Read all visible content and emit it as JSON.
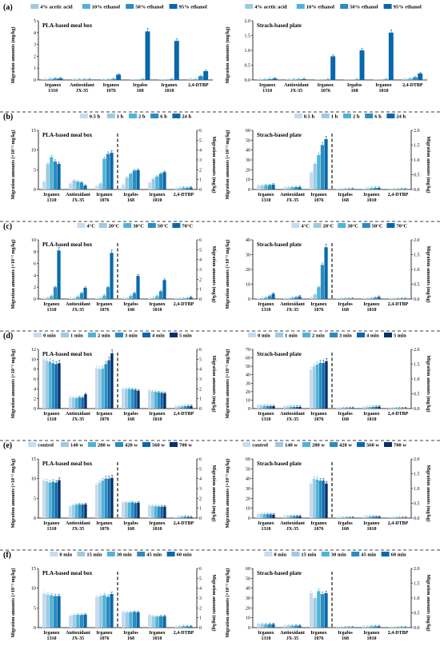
{
  "palette": [
    "#c6dbef",
    "#9ecae1",
    "#4fb3d9",
    "#2b8cbe",
    "#0868ac",
    "#08306b"
  ],
  "chart_data": [
    {
      "panel": "(a)",
      "title": "PLA-based meal box",
      "type": "bar",
      "ylabel": "Migration amounts (mg/kg)",
      "ylim": [
        0,
        5
      ],
      "yticks": [
        "0",
        "1",
        "2",
        "3",
        "4",
        "5"
      ],
      "y2label": "",
      "y2ticks": [],
      "split_after": null,
      "categories": [
        "Irganox 1310",
        "Antioxidant JX-35",
        "Irganox 1076",
        "Irgafos 168",
        "Irganox 1010",
        "2,4-DTBP"
      ],
      "series": [
        {
          "name": "4% acetic acid",
          "values": [
            0.06,
            0.01,
            0.01,
            0.0,
            0.0,
            0.08
          ]
        },
        {
          "name": "10% ethanol",
          "values": [
            0.08,
            0.02,
            0.02,
            0.0,
            0.0,
            0.06
          ]
        },
        {
          "name": "50% ethanol",
          "values": [
            0.12,
            0.03,
            0.08,
            0.05,
            0.06,
            0.32
          ]
        },
        {
          "name": "95% ethanol",
          "values": [
            0.14,
            0.04,
            0.45,
            4.1,
            3.3,
            0.75
          ]
        }
      ]
    },
    {
      "panel": "",
      "title": "Strach-based plate",
      "type": "bar",
      "ylabel": "Migration amounts (mg/kg)",
      "ylim": [
        0,
        2.0
      ],
      "yticks": [
        "0.0",
        "0.5",
        "1.0",
        "1.5",
        "2.0"
      ],
      "y2label": "",
      "y2ticks": [],
      "split_after": null,
      "categories": [
        "Irganox 1310",
        "Antioxidant JX-35",
        "Irganox 1076",
        "Irgafos 168",
        "Irganox 1010",
        "2,4-DTBP"
      ],
      "series": [
        {
          "name": "4% acetic acid",
          "values": [
            0.01,
            0.01,
            0.0,
            0.0,
            0.0,
            0.03
          ]
        },
        {
          "name": "10% ethanol",
          "values": [
            0.02,
            0.01,
            0.0,
            0.0,
            0.0,
            0.04
          ]
        },
        {
          "name": "50% ethanol",
          "values": [
            0.03,
            0.02,
            0.01,
            0.01,
            0.02,
            0.09
          ]
        },
        {
          "name": "95% ethanol",
          "values": [
            0.05,
            0.03,
            0.8,
            1.0,
            1.6,
            0.22
          ]
        }
      ]
    },
    {
      "panel": "(b)",
      "title": "PLA-based meal box",
      "type": "bar",
      "ylabel": "Migration amounts (×10⁻² mg/kg)",
      "ylim": [
        0,
        15
      ],
      "yticks": [
        "0",
        "5",
        "10",
        "15"
      ],
      "y2label": "Migration amounts (mg/kg)",
      "y2ticks": [
        "0",
        "1",
        "2",
        "3",
        "4",
        "5",
        "6"
      ],
      "split_after": 2,
      "categories": [
        "Irganox 1310",
        "Antioxidant JX-35",
        "Irganox 1076",
        "Irgafos 168",
        "Irganox 1010",
        "2,4-DTBP"
      ],
      "series": [
        {
          "name": "0.5 h",
          "values": [
            2.0,
            1.5,
            0.8,
            1.1,
            1.7,
            0.3
          ]
        },
        {
          "name": "1 h",
          "values": [
            6.5,
            2.3,
            1.5,
            3.0,
            2.7,
            0.4
          ]
        },
        {
          "name": "2 h",
          "values": [
            8.2,
            2.0,
            7.8,
            4.0,
            3.3,
            0.5
          ]
        },
        {
          "name": "6 h",
          "values": [
            7.1,
            1.8,
            9.0,
            4.8,
            4.0,
            0.4
          ]
        },
        {
          "name": "24 h",
          "values": [
            6.5,
            1.0,
            9.3,
            4.9,
            4.4,
            0.5
          ]
        }
      ]
    },
    {
      "panel": "",
      "title": "Strach-based plate",
      "type": "bar",
      "ylabel": "Migration amounts (×10⁻² mg/kg)",
      "ylim": [
        0,
        60
      ],
      "yticks": [
        "0",
        "10",
        "20",
        "30",
        "40",
        "50",
        "60"
      ],
      "y2label": "Migration amounts (mg/kg)",
      "y2ticks": [
        "0.0",
        "0.5",
        "1.0",
        "1.5",
        "2.0"
      ],
      "split_after": 2,
      "categories": [
        "Irganox 1310",
        "Antioxidant JX-35",
        "Irganox 1076",
        "Irgafos 168",
        "Irganox 1010",
        "2,4-DTBP"
      ],
      "series": [
        {
          "name": "0.5 h",
          "values": [
            4.0,
            2.0,
            17.0,
            0.15,
            0.8,
            0.15
          ]
        },
        {
          "name": "1 h",
          "values": [
            4.0,
            2.2,
            26.0,
            0.25,
            1.2,
            0.2
          ]
        },
        {
          "name": "2 h",
          "values": [
            4.5,
            2.3,
            35.0,
            0.4,
            1.5,
            0.22
          ]
        },
        {
          "name": "6 h",
          "values": [
            4.5,
            2.4,
            45.0,
            0.5,
            1.65,
            0.18
          ]
        },
        {
          "name": "24 h",
          "values": [
            5.0,
            2.5,
            51.0,
            0.65,
            1.68,
            0.12
          ]
        }
      ]
    },
    {
      "panel": "(c)",
      "title": "PLA-based meal box",
      "type": "bar",
      "ylabel": "Migration amounts (×10⁻² mg/kg)",
      "ylim": [
        0,
        10
      ],
      "yticks": [
        "0",
        "2",
        "4",
        "6",
        "8",
        "10"
      ],
      "y2label": "Migration amounts (mg/kg)",
      "y2ticks": [
        "0",
        "1",
        "2",
        "3",
        "4",
        "5",
        "6"
      ],
      "split_after": 2,
      "categories": [
        "Irganox 1310",
        "Antioxidant JX-35",
        "Irganox 1076",
        "Irgafos 168",
        "Irganox 1010",
        "2,4-DTBP"
      ],
      "series": [
        {
          "name": "4°C",
          "values": [
            0.1,
            0.1,
            0.1,
            0.05,
            0.05,
            0.02
          ]
        },
        {
          "name": "20°C",
          "values": [
            0.2,
            0.1,
            0.2,
            0.1,
            0.2,
            0.02
          ]
        },
        {
          "name": "30°C",
          "values": [
            0.5,
            0.4,
            0.6,
            0.5,
            0.5,
            0.05
          ]
        },
        {
          "name": "50°C",
          "values": [
            2.0,
            1.0,
            2.0,
            1.0,
            1.3,
            0.1
          ]
        },
        {
          "name": "70°C",
          "values": [
            8.2,
            1.9,
            7.8,
            3.9,
            3.2,
            0.3
          ]
        }
      ]
    },
    {
      "panel": "",
      "title": "Strach-based plate",
      "type": "bar",
      "ylabel": "Migration amounts (×10⁻² mg/kg)",
      "ylim": [
        0,
        40
      ],
      "yticks": [
        "0",
        "10",
        "20",
        "30",
        "40"
      ],
      "y2label": "Migration amounts (mg/kg)",
      "y2ticks": [
        "0.0",
        "0.5",
        "1.0",
        "1.5",
        "2.0"
      ],
      "split_after": 2,
      "categories": [
        "Irganox 1310",
        "Antioxidant JX-35",
        "Irganox 1076",
        "Irgafos 168",
        "Irganox 1010",
        "2,4-DTBP"
      ],
      "series": [
        {
          "name": "4°C",
          "values": [
            0.3,
            0.2,
            1.0,
            0.02,
            0.05,
            0.01
          ]
        },
        {
          "name": "20°C",
          "values": [
            0.6,
            0.4,
            3.0,
            0.03,
            0.15,
            0.02
          ]
        },
        {
          "name": "30°C",
          "values": [
            1.0,
            0.8,
            8.0,
            0.05,
            0.45,
            0.04
          ]
        },
        {
          "name": "50°C",
          "values": [
            2.0,
            1.2,
            23.0,
            0.1,
            0.9,
            0.08
          ]
        },
        {
          "name": "70°C",
          "values": [
            3.5,
            1.8,
            35.0,
            0.3,
            1.5,
            0.14
          ]
        }
      ]
    },
    {
      "panel": "(d)",
      "title": "PLA-based meal box",
      "type": "bar",
      "ylabel": "Migration amounts (×10⁻² mg/kg)",
      "ylim": [
        0,
        12
      ],
      "yticks": [
        "0",
        "2",
        "4",
        "6",
        "8",
        "10",
        "12"
      ],
      "y2label": "Migration amounts (mg/kg)",
      "y2ticks": [
        "0",
        "1",
        "2",
        "3",
        "4",
        "5",
        "6"
      ],
      "split_after": 2,
      "categories": [
        "Irganox 1310",
        "Antioxidant JX-35",
        "Irganox 1076",
        "Irgafos 168",
        "Irganox 1010",
        "2,4-DTBP"
      ],
      "series": [
        {
          "name": "0 min",
          "values": [
            10.0,
            2.3,
            8.2,
            4.0,
            3.7,
            0.5
          ]
        },
        {
          "name": "1 min",
          "values": [
            9.7,
            2.2,
            8.0,
            4.0,
            3.5,
            0.45
          ]
        },
        {
          "name": "2 min",
          "values": [
            9.5,
            2.1,
            8.1,
            4.0,
            3.4,
            0.4
          ]
        },
        {
          "name": "3 min",
          "values": [
            9.2,
            2.3,
            9.0,
            3.9,
            3.3,
            0.45
          ]
        },
        {
          "name": "4 min",
          "values": [
            9.0,
            2.2,
            9.8,
            3.8,
            3.2,
            0.5
          ]
        },
        {
          "name": "5 min",
          "values": [
            9.2,
            2.9,
            11.2,
            3.6,
            3.1,
            0.5
          ]
        }
      ]
    },
    {
      "panel": "",
      "title": "Strach-based plate",
      "type": "bar",
      "ylabel": "Migration amounts (×10⁻² mg/kg)",
      "ylim": [
        0,
        70
      ],
      "yticks": [
        "0",
        "10",
        "20",
        "30",
        "40",
        "50",
        "60",
        "70"
      ],
      "y2label": "Migration amounts (mg/kg)",
      "y2ticks": [
        "0.0",
        "0.5",
        "1.0",
        "1.5",
        "2.0"
      ],
      "split_after": 2,
      "categories": [
        "Irganox 1310",
        "Antioxidant JX-35",
        "Irganox 1076",
        "Irgafos 168",
        "Irganox 1010",
        "2,4-DTBP"
      ],
      "series": [
        {
          "name": "0 min",
          "values": [
            4.0,
            2.5,
            46.0,
            0.5,
            2.0,
            0.25
          ]
        },
        {
          "name": "1 min",
          "values": [
            3.5,
            2.3,
            50.0,
            0.5,
            1.9,
            0.2
          ]
        },
        {
          "name": "2 min",
          "values": [
            3.2,
            2.2,
            52.0,
            0.55,
            1.85,
            0.18
          ]
        },
        {
          "name": "3 min",
          "values": [
            3.0,
            2.1,
            54.0,
            0.58,
            1.9,
            0.16
          ]
        },
        {
          "name": "4 min",
          "values": [
            2.8,
            2.0,
            54.0,
            0.6,
            2.1,
            0.15
          ]
        },
        {
          "name": "5 min",
          "values": [
            2.8,
            1.9,
            56.0,
            0.62,
            2.2,
            0.14
          ]
        }
      ]
    },
    {
      "panel": "(e)",
      "title": "PLA-based meal box",
      "type": "bar",
      "ylabel": "Migration amounts (×10⁻² mg/kg)",
      "ylim": [
        0,
        15
      ],
      "yticks": [
        "0",
        "5",
        "10",
        "15"
      ],
      "y2label": "Migration amounts (mg/kg)",
      "y2ticks": [
        "0",
        "1",
        "2",
        "3",
        "4",
        "5",
        "6"
      ],
      "split_after": 2,
      "categories": [
        "Irganox 1310",
        "Antioxidant JX-35",
        "Irganox 1076",
        "Irgafos 168",
        "Irganox 1010",
        "2,4-DTBP"
      ],
      "series": [
        {
          "name": "control",
          "values": [
            9.5,
            3.0,
            8.5,
            4.0,
            3.2,
            0.2
          ]
        },
        {
          "name": "140 w",
          "values": [
            9.3,
            3.3,
            9.0,
            4.0,
            3.1,
            0.3
          ]
        },
        {
          "name": "280 w",
          "values": [
            9.0,
            3.4,
            9.5,
            3.9,
            3.0,
            0.3
          ]
        },
        {
          "name": "420 w",
          "values": [
            9.2,
            3.5,
            10.0,
            4.0,
            2.9,
            0.35
          ]
        },
        {
          "name": "560 w",
          "values": [
            9.0,
            3.4,
            10.0,
            3.8,
            2.9,
            0.3
          ]
        },
        {
          "name": "700 w",
          "values": [
            9.6,
            3.5,
            10.2,
            3.9,
            2.9,
            0.2
          ]
        }
      ]
    },
    {
      "panel": "",
      "title": "Strach-based plate",
      "type": "bar",
      "ylabel": "Migration amounts (×10⁻² mg/kg)",
      "ylim": [
        0,
        60
      ],
      "yticks": [
        "0",
        "10",
        "20",
        "30",
        "40",
        "50",
        "60"
      ],
      "y2label": "Migration amounts (mg/kg)",
      "y2ticks": [
        "0.0",
        "0.5",
        "1.0",
        "1.5",
        "2.0"
      ],
      "split_after": 2,
      "categories": [
        "Irganox 1310",
        "Antioxidant JX-35",
        "Irganox 1076",
        "Irgafos 168",
        "Irganox 1010",
        "2,4-DTBP"
      ],
      "series": [
        {
          "name": "control",
          "values": [
            4.0,
            2.0,
            35.0,
            0.35,
            1.5,
            0.2
          ]
        },
        {
          "name": "140 w",
          "values": [
            4.2,
            2.0,
            40.0,
            0.4,
            1.55,
            0.2
          ]
        },
        {
          "name": "280 w",
          "values": [
            4.0,
            2.1,
            39.0,
            0.42,
            1.6,
            0.2
          ]
        },
        {
          "name": "420 w",
          "values": [
            4.0,
            2.0,
            38.0,
            0.42,
            1.6,
            0.18
          ]
        },
        {
          "name": "560 w",
          "values": [
            3.8,
            2.0,
            38.0,
            0.4,
            1.45,
            0.15
          ]
        },
        {
          "name": "700 w",
          "values": [
            3.5,
            1.9,
            35.0,
            0.38,
            1.2,
            0.1
          ]
        }
      ]
    },
    {
      "panel": "(f)",
      "title": "PLA-based meal box",
      "type": "bar",
      "ylabel": "Migration amounts (×10⁻² mg/kg)",
      "ylim": [
        0,
        15
      ],
      "yticks": [
        "0",
        "5",
        "10",
        "15"
      ],
      "y2label": "Migration amounts (mg/kg)",
      "y2ticks": [
        "0",
        "1",
        "2",
        "3",
        "4",
        "5",
        "6"
      ],
      "split_after": 2,
      "categories": [
        "Irganox 1310",
        "Antioxidant JX-35",
        "Irganox 1076",
        "Irgafos 168",
        "Irganox 1010",
        "2,4-DTBP"
      ],
      "series": [
        {
          "name": "0 min",
          "values": [
            8.6,
            3.0,
            7.8,
            4.0,
            3.2,
            0.3
          ]
        },
        {
          "name": "15 min",
          "values": [
            8.4,
            3.2,
            8.0,
            3.9,
            2.9,
            0.35
          ]
        },
        {
          "name": "30 min",
          "values": [
            8.2,
            3.3,
            8.2,
            3.9,
            2.8,
            0.4
          ]
        },
        {
          "name": "45 min",
          "values": [
            8.0,
            3.2,
            7.8,
            4.0,
            2.9,
            0.35
          ]
        },
        {
          "name": "60 min",
          "values": [
            8.0,
            3.3,
            8.5,
            3.9,
            2.9,
            0.3
          ]
        }
      ]
    },
    {
      "panel": "",
      "title": "Strach-based plate",
      "type": "bar",
      "ylabel": "Migration amounts (×10⁻² mg/kg)",
      "ylim": [
        0,
        60
      ],
      "yticks": [
        "0",
        "10",
        "20",
        "30",
        "40",
        "50",
        "60"
      ],
      "y2label": "Migration amounts (mg/kg)",
      "y2ticks": [
        "0.0",
        "0.5",
        "1.0",
        "1.5",
        "2.0"
      ],
      "split_after": 2,
      "categories": [
        "Irganox 1310",
        "Antioxidant JX-35",
        "Irganox 1076",
        "Irgafos 168",
        "Irganox 1010",
        "2,4-DTBP"
      ],
      "series": [
        {
          "name": "0 min",
          "values": [
            4.0,
            2.0,
            35.0,
            0.3,
            1.5,
            0.2
          ]
        },
        {
          "name": "15 min",
          "values": [
            3.8,
            2.2,
            30.0,
            0.32,
            1.3,
            0.2
          ]
        },
        {
          "name": "30 min",
          "values": [
            3.5,
            2.0,
            37.0,
            0.3,
            1.35,
            0.18
          ]
        },
        {
          "name": "45 min",
          "values": [
            3.5,
            2.1,
            34.0,
            0.3,
            1.4,
            0.15
          ]
        },
        {
          "name": "60 min",
          "values": [
            3.6,
            2.0,
            35.0,
            0.28,
            1.4,
            0.14
          ]
        }
      ]
    }
  ]
}
